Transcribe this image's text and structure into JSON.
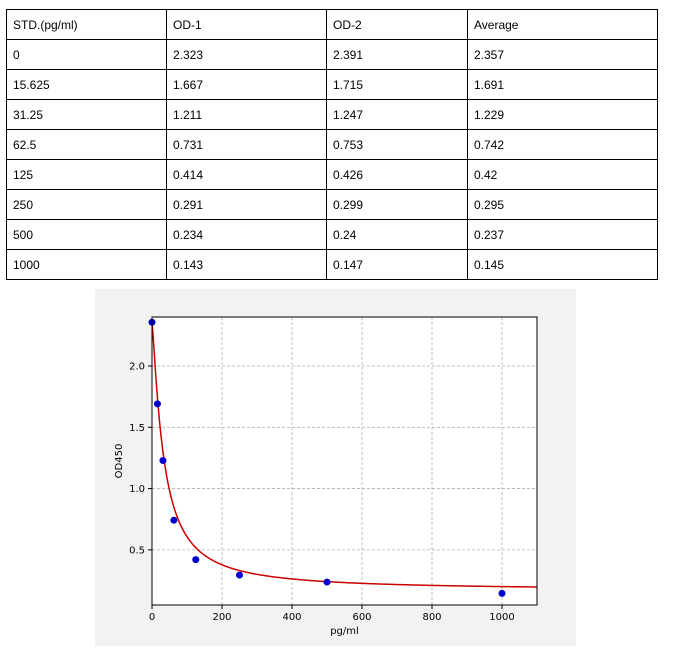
{
  "table": {
    "headers": [
      "STD.(pg/ml)",
      "OD-1",
      "OD-2",
      "Average"
    ],
    "rows": [
      [
        "0",
        "2.323",
        "2.391",
        "2.357"
      ],
      [
        "15.625",
        "1.667",
        "1.715",
        "1.691"
      ],
      [
        "31.25",
        "1.211",
        "1.247",
        "1.229"
      ],
      [
        "62.5",
        "0.731",
        "0.753",
        "0.742"
      ],
      [
        "125",
        "0.414",
        "0.426",
        "0.42"
      ],
      [
        "250",
        "0.291",
        "0.299",
        "0.295"
      ],
      [
        "500",
        "0.234",
        "0.24",
        "0.237"
      ],
      [
        "1000",
        "0.143",
        "0.147",
        "0.145"
      ]
    ]
  },
  "chart_data": {
    "type": "scatter",
    "title": "",
    "xlabel": "pg/ml",
    "ylabel": "OD450",
    "xlim": [
      0,
      1100
    ],
    "ylim": [
      0.05,
      2.4
    ],
    "xticks": [
      0,
      200,
      400,
      600,
      800,
      1000
    ],
    "yticks": [
      0.5,
      1.0,
      1.5,
      2.0
    ],
    "grid": true,
    "series": [
      {
        "kind": "points",
        "color": "#0000cc",
        "x": [
          0,
          15.625,
          31.25,
          62.5,
          125,
          250,
          500,
          1000
        ],
        "y": [
          2.357,
          1.691,
          1.229,
          0.742,
          0.42,
          0.295,
          0.237,
          0.145
        ]
      },
      {
        "kind": "fit-curve",
        "color": "#cc0000"
      }
    ]
  }
}
